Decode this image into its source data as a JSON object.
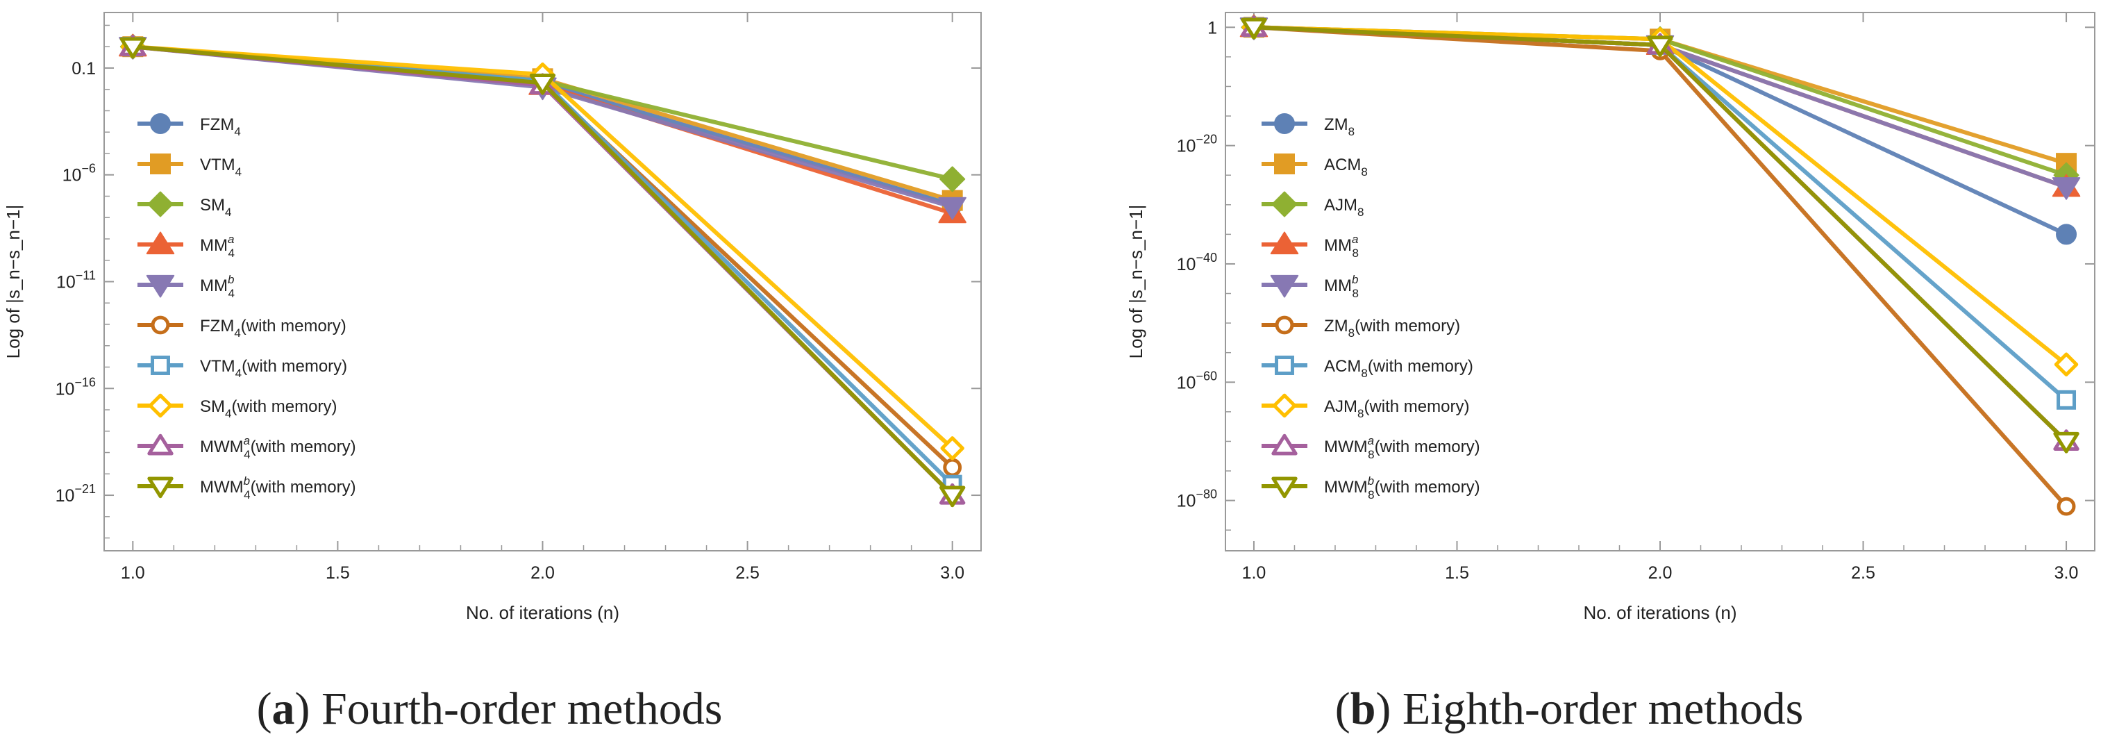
{
  "colors": {
    "c1": "#5E81B5",
    "c2": "#E19C24",
    "c3": "#8FB032",
    "c4": "#EB6235",
    "c5": "#8778B3",
    "c6": "#C56E1A",
    "c7": "#5D9EC7",
    "c8": "#FFBF00",
    "c9": "#A5609D",
    "c10": "#929600",
    "frame": "#999999",
    "text": "#222222"
  },
  "chart_data": [
    {
      "type": "line",
      "caption_letter": "(a)",
      "caption_text": "Fourth-order methods",
      "title": "",
      "xlabel": "No. of iterations (n)",
      "ylabel": "Log of |s_n−s_n−1|",
      "xlim": [
        0.93,
        3.07
      ],
      "ylim_log10": [
        -23.6,
        1.6
      ],
      "x_ticks": [
        {
          "value": 1.0,
          "label": "1.0"
        },
        {
          "value": 1.5,
          "label": "1.5"
        },
        {
          "value": 2.0,
          "label": "2.0"
        },
        {
          "value": 2.5,
          "label": "2.5"
        },
        {
          "value": 3.0,
          "label": "3.0"
        }
      ],
      "y_ticks": [
        {
          "exp": -1,
          "base": "0.1",
          "sup": ""
        },
        {
          "exp": -6,
          "base": "10",
          "sup": "−6"
        },
        {
          "exp": -11,
          "base": "10",
          "sup": "−11"
        },
        {
          "exp": -16,
          "base": "10",
          "sup": "−16"
        },
        {
          "exp": -21,
          "base": "10",
          "sup": "−21"
        }
      ],
      "x": [
        1,
        2,
        3
      ],
      "series": [
        {
          "name": "FZM",
          "sub": "4",
          "sup": "",
          "suffix": "",
          "marker": "circle",
          "filled": true,
          "color": "c1",
          "values_log10": [
            0,
            -1.7,
            -7.4
          ]
        },
        {
          "name": "VTM",
          "sub": "4",
          "sup": "",
          "suffix": "",
          "marker": "square",
          "filled": true,
          "color": "c2",
          "values_log10": [
            0,
            -1.5,
            -7.2
          ]
        },
        {
          "name": "SM",
          "sub": "4",
          "sup": "",
          "suffix": "",
          "marker": "diamond",
          "filled": true,
          "color": "c3",
          "values_log10": [
            0,
            -1.6,
            -6.2
          ]
        },
        {
          "name": "MM",
          "sub": "4",
          "sup": "a",
          "suffix": "",
          "marker": "triangle-up",
          "filled": true,
          "color": "c4",
          "values_log10": [
            0,
            -1.8,
            -7.8
          ]
        },
        {
          "name": "MM",
          "sub": "4",
          "sup": "b",
          "suffix": "",
          "marker": "triangle-down",
          "filled": true,
          "color": "c5",
          "values_log10": [
            0,
            -1.9,
            -7.5
          ]
        },
        {
          "name": "FZM",
          "sub": "4",
          "sup": "",
          "suffix": "(with memory)",
          "marker": "circle",
          "filled": false,
          "color": "c6",
          "values_log10": [
            0,
            -1.7,
            -19.7
          ]
        },
        {
          "name": "VTM",
          "sub": "4",
          "sup": "",
          "suffix": "(with memory)",
          "marker": "square",
          "filled": false,
          "color": "c7",
          "values_log10": [
            0,
            -1.6,
            -20.5
          ]
        },
        {
          "name": "SM",
          "sub": "4",
          "sup": "",
          "suffix": "(with memory)",
          "marker": "diamond",
          "filled": false,
          "color": "c8",
          "values_log10": [
            0,
            -1.3,
            -18.8
          ]
        },
        {
          "name": "MWM",
          "sub": "4",
          "sup": "a",
          "suffix": "(with memory)",
          "marker": "triangle-up",
          "filled": false,
          "color": "c9",
          "values_log10": [
            0,
            -1.8,
            -21.0
          ]
        },
        {
          "name": "MWM",
          "sub": "4",
          "sup": "b",
          "suffix": "(with memory)",
          "marker": "triangle-down",
          "filled": false,
          "color": "c10",
          "values_log10": [
            0,
            -1.7,
            -21.0
          ]
        }
      ]
    },
    {
      "type": "line",
      "caption_letter": "(b)",
      "caption_text": "Eighth-order methods",
      "title": "",
      "xlabel": "No. of iterations (n)",
      "ylabel": "Log of |s_n−s_n−1|",
      "xlim": [
        0.93,
        3.07
      ],
      "ylim_log10": [
        -88.5,
        2.5
      ],
      "x_ticks": [
        {
          "value": 1.0,
          "label": "1.0"
        },
        {
          "value": 1.5,
          "label": "1.5"
        },
        {
          "value": 2.0,
          "label": "2.0"
        },
        {
          "value": 2.5,
          "label": "2.5"
        },
        {
          "value": 3.0,
          "label": "3.0"
        }
      ],
      "y_ticks": [
        {
          "exp": 0,
          "base": "1",
          "sup": ""
        },
        {
          "exp": -20,
          "base": "10",
          "sup": "−20"
        },
        {
          "exp": -40,
          "base": "10",
          "sup": "−40"
        },
        {
          "exp": -60,
          "base": "10",
          "sup": "−60"
        },
        {
          "exp": -80,
          "base": "10",
          "sup": "−80"
        }
      ],
      "x": [
        1,
        2,
        3
      ],
      "series": [
        {
          "name": "ZM",
          "sub": "8",
          "sup": "",
          "suffix": "",
          "marker": "circle",
          "filled": true,
          "color": "c1",
          "values_log10": [
            0,
            -3,
            -35
          ]
        },
        {
          "name": "ACM",
          "sub": "8",
          "sup": "",
          "suffix": "",
          "marker": "square",
          "filled": true,
          "color": "c2",
          "values_log10": [
            0,
            -2,
            -23
          ]
        },
        {
          "name": "AJM",
          "sub": "8",
          "sup": "",
          "suffix": "",
          "marker": "diamond",
          "filled": true,
          "color": "c3",
          "values_log10": [
            0,
            -2,
            -25
          ]
        },
        {
          "name": "MM",
          "sub": "8",
          "sup": "a",
          "suffix": "",
          "marker": "triangle-up",
          "filled": true,
          "color": "c4",
          "values_log10": [
            0,
            -3,
            -27
          ]
        },
        {
          "name": "MM",
          "sub": "8",
          "sup": "b",
          "suffix": "",
          "marker": "triangle-down",
          "filled": true,
          "color": "c5",
          "values_log10": [
            0,
            -3,
            -27
          ]
        },
        {
          "name": "ZM",
          "sub": "8",
          "sup": "",
          "suffix": "(with memory)",
          "marker": "circle",
          "filled": false,
          "color": "c6",
          "values_log10": [
            0,
            -4,
            -81
          ]
        },
        {
          "name": "ACM",
          "sub": "8",
          "sup": "",
          "suffix": "(with memory)",
          "marker": "square",
          "filled": false,
          "color": "c7",
          "values_log10": [
            0,
            -3,
            -63
          ]
        },
        {
          "name": "AJM",
          "sub": "8",
          "sup": "",
          "suffix": "(with memory)",
          "marker": "diamond",
          "filled": false,
          "color": "c8",
          "values_log10": [
            0,
            -2,
            -57
          ]
        },
        {
          "name": "MWM",
          "sub": "8",
          "sup": "a",
          "suffix": "(with memory)",
          "marker": "triangle-up",
          "filled": false,
          "color": "c9",
          "values_log10": [
            0,
            -3,
            -70
          ]
        },
        {
          "name": "MWM",
          "sub": "8",
          "sup": "b",
          "suffix": "(with memory)",
          "marker": "triangle-down",
          "filled": false,
          "color": "c10",
          "values_log10": [
            0,
            -3,
            -70
          ]
        }
      ]
    }
  ]
}
